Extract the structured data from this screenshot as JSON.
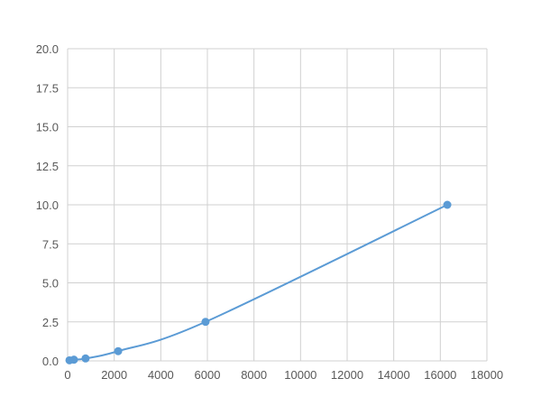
{
  "chart_data": {
    "type": "scatter",
    "title": "",
    "xlabel": "",
    "ylabel": "",
    "xlim": [
      0,
      18000
    ],
    "ylim": [
      0,
      20
    ],
    "xticks": [
      0,
      2000,
      4000,
      6000,
      8000,
      10000,
      12000,
      14000,
      16000,
      18000
    ],
    "yticks": [
      "0.0",
      "2.5",
      "5.0",
      "7.5",
      "10.0",
      "12.5",
      "15.0",
      "17.5",
      "20.0"
    ],
    "grid": true,
    "series": [
      {
        "color": "#5b9bd5",
        "points": [
          [
            80,
            0.039
          ],
          [
            270,
            0.078
          ],
          [
            770,
            0.156
          ],
          [
            2170,
            0.625
          ],
          [
            5920,
            2.5
          ],
          [
            16300,
            10
          ]
        ],
        "smooth_line": true
      }
    ]
  }
}
